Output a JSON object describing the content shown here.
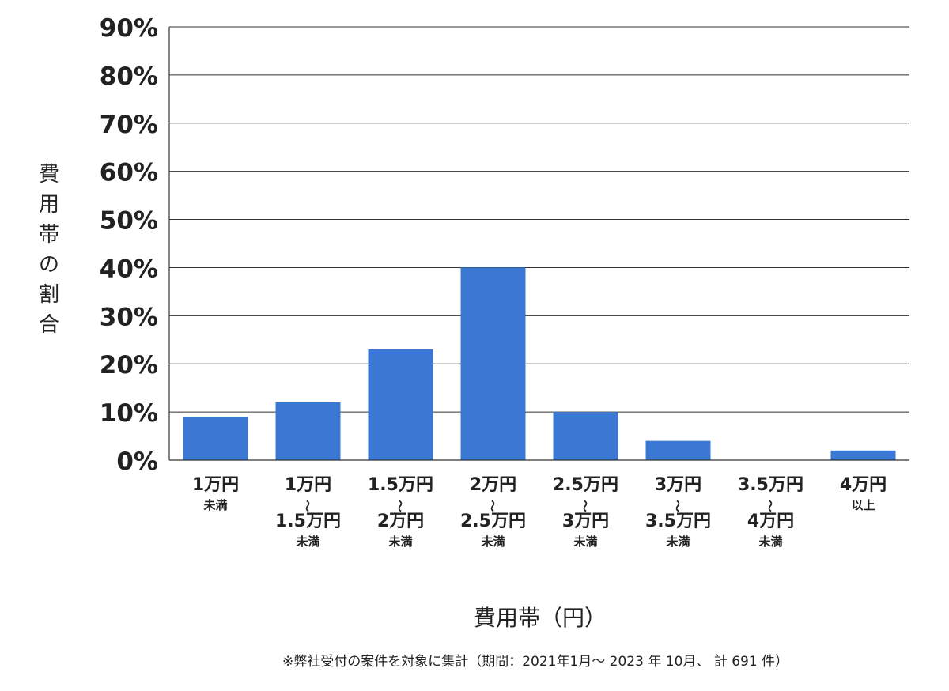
{
  "chart_data": {
    "type": "bar",
    "xlabel": "費用帯（円）",
    "ylabel": "費用帯の割合",
    "ylim": [
      0,
      90
    ],
    "yticks": [
      "0%",
      "10%",
      "20%",
      "30%",
      "40%",
      "50%",
      "60%",
      "70%",
      "80%",
      "90%"
    ],
    "grid": true,
    "bar_color": "#3a78d4",
    "categories": [
      [
        "1万円",
        "未満"
      ],
      [
        "1万円",
        "～",
        "1.5万円",
        "未満"
      ],
      [
        "1.5万円",
        "～",
        "2万円",
        "未満"
      ],
      [
        "2万円",
        "～",
        "2.5万円",
        "未満"
      ],
      [
        "2.5万円",
        "～",
        "3万円",
        "未満"
      ],
      [
        "3万円",
        "～",
        "3.5万円",
        "未満"
      ],
      [
        "3.5万円",
        "～",
        "4万円",
        "未満"
      ],
      [
        "4万円",
        "以上"
      ]
    ],
    "values": [
      9,
      12,
      23,
      40,
      10,
      4,
      0,
      2
    ]
  },
  "footnote": "※弊社受付の案件を対象に集計（期間：2021年1月～ 2023 年 10月、 計 691 件）"
}
